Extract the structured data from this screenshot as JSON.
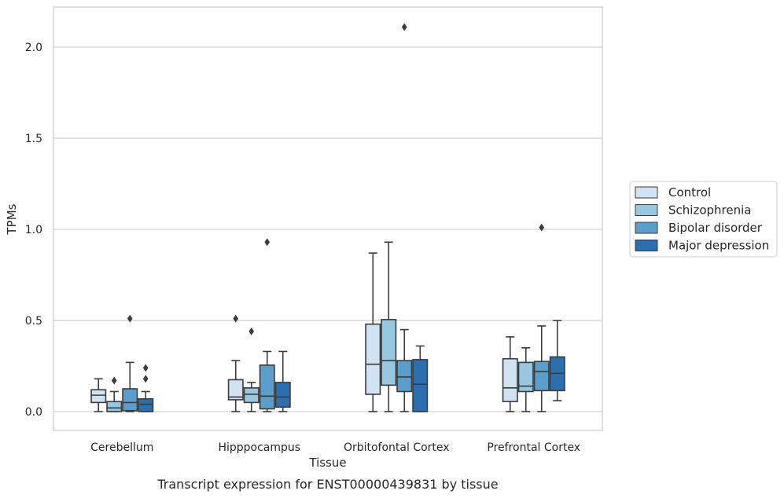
{
  "chart_data": {
    "type": "box",
    "caption": "Transcript expression for ENST00000439831 by tissue",
    "xlabel": "Tissue",
    "ylabel": "TPMs",
    "ylim": [
      -0.1,
      2.23
    ],
    "yticks": [
      0.0,
      0.5,
      1.0,
      1.5,
      2.0
    ],
    "ytick_labels": [
      "0.0",
      "0.5",
      "1.0",
      "1.5",
      "2.0"
    ],
    "grid": "horizontal",
    "legend_position": "right",
    "categories": [
      "Cerebellum",
      "Hipppocampus",
      "Orbitofontal Cortex",
      "Prefrontal Cortex"
    ],
    "series": [
      {
        "name": "Control",
        "color": "#d1e2f2",
        "boxes": [
          {
            "whislo": 0.0,
            "q1": 0.05,
            "med": 0.09,
            "q3": 0.12,
            "whishi": 0.18,
            "fliers": []
          },
          {
            "whislo": 0.0,
            "q1": 0.065,
            "med": 0.08,
            "q3": 0.175,
            "whishi": 0.28,
            "fliers": [
              0.51
            ]
          },
          {
            "whislo": 0.0,
            "q1": 0.095,
            "med": 0.26,
            "q3": 0.48,
            "whishi": 0.87,
            "fliers": []
          },
          {
            "whislo": 0.0,
            "q1": 0.055,
            "med": 0.13,
            "q3": 0.29,
            "whishi": 0.41,
            "fliers": []
          }
        ]
      },
      {
        "name": "Schizophrenia",
        "color": "#9ac7e0",
        "boxes": [
          {
            "whislo": 0.0,
            "q1": 0.0,
            "med": 0.02,
            "q3": 0.055,
            "whishi": 0.11,
            "fliers": [
              0.17
            ]
          },
          {
            "whislo": 0.0,
            "q1": 0.05,
            "med": 0.095,
            "q3": 0.13,
            "whishi": 0.16,
            "fliers": [
              0.44
            ]
          },
          {
            "whislo": 0.0,
            "q1": 0.145,
            "med": 0.28,
            "q3": 0.505,
            "whishi": 0.93,
            "fliers": []
          },
          {
            "whislo": 0.0,
            "q1": 0.11,
            "med": 0.14,
            "q3": 0.27,
            "whishi": 0.35,
            "fliers": []
          }
        ]
      },
      {
        "name": "Bipolar disorder",
        "color": "#5b9ecb",
        "boxes": [
          {
            "whislo": 0.0,
            "q1": 0.005,
            "med": 0.05,
            "q3": 0.125,
            "whishi": 0.27,
            "fliers": [
              0.51
            ]
          },
          {
            "whislo": 0.0,
            "q1": 0.015,
            "med": 0.085,
            "q3": 0.255,
            "whishi": 0.33,
            "fliers": [
              0.93
            ]
          },
          {
            "whislo": 0.0,
            "q1": 0.11,
            "med": 0.19,
            "q3": 0.28,
            "whishi": 0.45,
            "fliers": [
              2.11
            ]
          },
          {
            "whislo": 0.0,
            "q1": 0.115,
            "med": 0.22,
            "q3": 0.275,
            "whishi": 0.47,
            "fliers": [
              1.01
            ]
          }
        ]
      },
      {
        "name": "Major depression",
        "color": "#2c6fae",
        "boxes": [
          {
            "whislo": 0.0,
            "q1": 0.0,
            "med": 0.04,
            "q3": 0.07,
            "whishi": 0.11,
            "fliers": [
              0.18,
              0.24
            ]
          },
          {
            "whislo": 0.0,
            "q1": 0.025,
            "med": 0.08,
            "q3": 0.16,
            "whishi": 0.33,
            "fliers": []
          },
          {
            "whislo": 0.0,
            "q1": 0.0,
            "med": 0.15,
            "q3": 0.285,
            "whishi": 0.36,
            "fliers": []
          },
          {
            "whislo": 0.06,
            "q1": 0.115,
            "med": 0.21,
            "q3": 0.3,
            "whishi": 0.5,
            "fliers": []
          }
        ]
      }
    ]
  }
}
